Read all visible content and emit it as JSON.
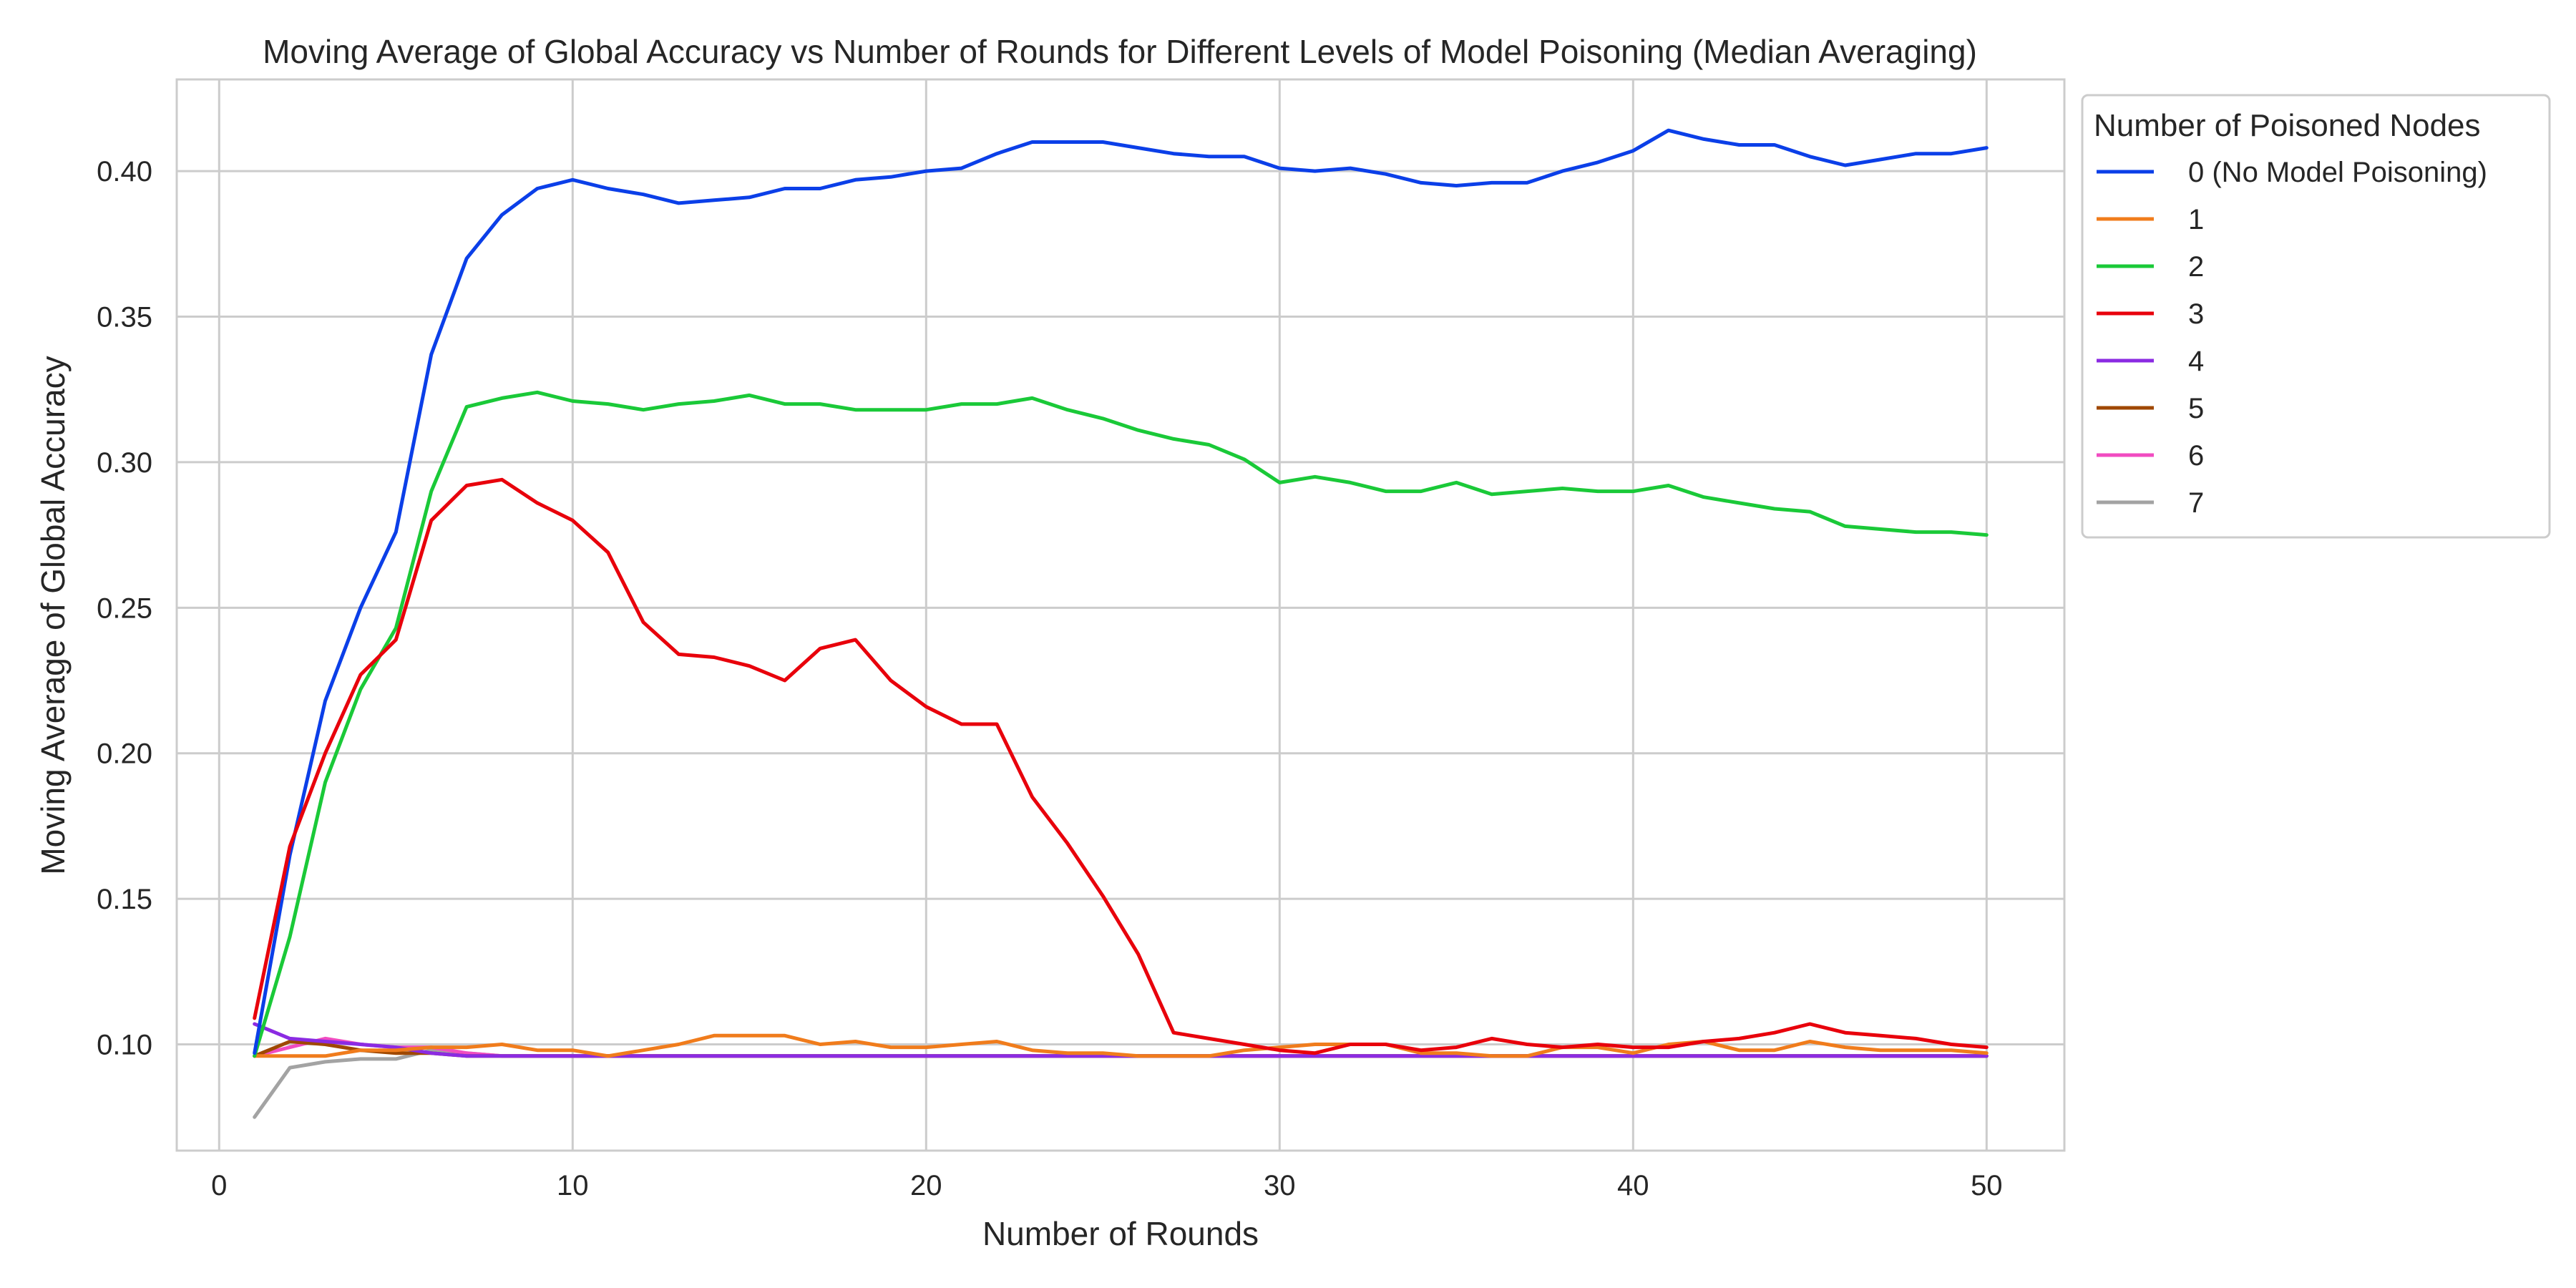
{
  "chart_data": {
    "type": "line",
    "title": "Moving Average of Global Accuracy vs Number of Rounds for Different Levels of Model Poisoning (Median Averaging)",
    "xlabel": "Number of Rounds",
    "ylabel": "Moving Average of Global Accuracy",
    "xlim": [
      -1.2,
      52.2
    ],
    "ylim": [
      0.0635,
      0.4315
    ],
    "xticks": [
      0,
      10,
      20,
      30,
      40,
      50
    ],
    "yticks": [
      0.1,
      0.15,
      0.2,
      0.25,
      0.3,
      0.35,
      0.4
    ],
    "xtick_labels": [
      "0",
      "10",
      "20",
      "30",
      "40",
      "50"
    ],
    "ytick_labels": [
      "0.10",
      "0.15",
      "0.20",
      "0.25",
      "0.30",
      "0.35",
      "0.40"
    ],
    "grid": true,
    "legend": {
      "title": "Number of Poisoned Nodes",
      "placement": "outside-upper-right"
    },
    "x": [
      1,
      2,
      3,
      4,
      5,
      6,
      7,
      8,
      9,
      10,
      11,
      12,
      13,
      14,
      15,
      16,
      17,
      18,
      19,
      20,
      21,
      22,
      23,
      24,
      25,
      26,
      27,
      28,
      29,
      30,
      31,
      32,
      33,
      34,
      35,
      36,
      37,
      38,
      39,
      40,
      41,
      42,
      43,
      44,
      45,
      46,
      47,
      48,
      49,
      50
    ],
    "series": [
      {
        "name": "0 (No Model Poisoning)",
        "color": "#0b3fe8",
        "values": [
          0.097,
          0.165,
          0.218,
          0.25,
          0.276,
          0.337,
          0.37,
          0.385,
          0.394,
          0.397,
          0.394,
          0.392,
          0.389,
          0.39,
          0.391,
          0.394,
          0.394,
          0.397,
          0.398,
          0.4,
          0.401,
          0.406,
          0.41,
          0.41,
          0.41,
          0.408,
          0.406,
          0.405,
          0.405,
          0.401,
          0.4,
          0.401,
          0.399,
          0.396,
          0.395,
          0.396,
          0.396,
          0.4,
          0.403,
          0.407,
          0.414,
          0.411,
          0.409,
          0.409,
          0.405,
          0.402,
          0.404,
          0.406,
          0.406,
          0.408
        ]
      },
      {
        "name": "1",
        "color": "#f07c1c",
        "values": [
          0.096,
          0.096,
          0.096,
          0.098,
          0.098,
          0.099,
          0.099,
          0.1,
          0.098,
          0.098,
          0.096,
          0.098,
          0.1,
          0.103,
          0.103,
          0.103,
          0.1,
          0.101,
          0.099,
          0.099,
          0.1,
          0.101,
          0.098,
          0.097,
          0.097,
          0.096,
          0.096,
          0.096,
          0.098,
          0.099,
          0.1,
          0.1,
          0.1,
          0.097,
          0.097,
          0.096,
          0.096,
          0.099,
          0.099,
          0.097,
          0.1,
          0.101,
          0.098,
          0.098,
          0.101,
          0.099,
          0.098,
          0.098,
          0.098,
          0.097
        ]
      },
      {
        "name": "2",
        "color": "#1ac938",
        "values": [
          0.096,
          0.137,
          0.19,
          0.222,
          0.243,
          0.29,
          0.319,
          0.322,
          0.324,
          0.321,
          0.32,
          0.318,
          0.32,
          0.321,
          0.323,
          0.32,
          0.32,
          0.318,
          0.318,
          0.318,
          0.32,
          0.32,
          0.322,
          0.318,
          0.315,
          0.311,
          0.308,
          0.306,
          0.301,
          0.293,
          0.295,
          0.293,
          0.29,
          0.29,
          0.293,
          0.289,
          0.29,
          0.291,
          0.29,
          0.29,
          0.292,
          0.288,
          0.286,
          0.284,
          0.283,
          0.278,
          0.277,
          0.276,
          0.276,
          0.275
        ]
      },
      {
        "name": "3",
        "color": "#e8000b",
        "values": [
          0.109,
          0.168,
          0.2,
          0.227,
          0.239,
          0.28,
          0.292,
          0.294,
          0.286,
          0.28,
          0.269,
          0.245,
          0.234,
          0.233,
          0.23,
          0.225,
          0.236,
          0.239,
          0.225,
          0.216,
          0.21,
          0.21,
          0.185,
          0.169,
          0.151,
          0.131,
          0.104,
          0.102,
          0.1,
          0.098,
          0.097,
          0.1,
          0.1,
          0.098,
          0.099,
          0.102,
          0.1,
          0.099,
          0.1,
          0.099,
          0.099,
          0.101,
          0.102,
          0.104,
          0.107,
          0.104,
          0.103,
          0.102,
          0.1,
          0.099
        ]
      },
      {
        "name": "4",
        "color": "#8b2be2",
        "values": [
          0.107,
          0.102,
          0.101,
          0.1,
          0.099,
          0.097,
          0.096,
          0.096,
          0.096,
          0.096,
          0.096,
          0.096,
          0.096,
          0.096,
          0.096,
          0.096,
          0.096,
          0.096,
          0.096,
          0.096,
          0.096,
          0.096,
          0.096,
          0.096,
          0.096,
          0.096,
          0.096,
          0.096,
          0.096,
          0.096,
          0.096,
          0.096,
          0.096,
          0.096,
          0.096,
          0.096,
          0.096,
          0.096,
          0.096,
          0.096,
          0.096,
          0.096,
          0.096,
          0.096,
          0.096,
          0.096,
          0.096,
          0.096,
          0.096,
          0.096
        ]
      },
      {
        "name": "5",
        "color": "#9f4800",
        "values": [
          0.096,
          0.101,
          0.1,
          0.098,
          0.097,
          0.097,
          0.096,
          0.096,
          0.096,
          0.096,
          0.096,
          0.096,
          0.096,
          0.096,
          0.096,
          0.096,
          0.096,
          0.096,
          0.096,
          0.096,
          0.096,
          0.096,
          0.096,
          0.096,
          0.096,
          0.096,
          0.096,
          0.096,
          0.096,
          0.096,
          0.096,
          0.096,
          0.096,
          0.096,
          0.096,
          0.096,
          0.096,
          0.096,
          0.096,
          0.096,
          0.096,
          0.096,
          0.096,
          0.096,
          0.096,
          0.096,
          0.096,
          0.096,
          0.096,
          0.096
        ]
      },
      {
        "name": "6",
        "color": "#f14cc1",
        "values": [
          0.096,
          0.099,
          0.102,
          0.1,
          0.099,
          0.099,
          0.097,
          0.096,
          0.096,
          0.096,
          0.096,
          0.096,
          0.096,
          0.096,
          0.096,
          0.096,
          0.096,
          0.096,
          0.096,
          0.096,
          0.096,
          0.096,
          0.096,
          0.096,
          0.096,
          0.096,
          0.096,
          0.096,
          0.096,
          0.096,
          0.096,
          0.096,
          0.096,
          0.096,
          0.096,
          0.096,
          0.096,
          0.096,
          0.096,
          0.096,
          0.096,
          0.096,
          0.096,
          0.096,
          0.096,
          0.096,
          0.096,
          0.096,
          0.096,
          0.096
        ]
      },
      {
        "name": "7",
        "color": "#a3a3a3",
        "values": [
          0.075,
          0.092,
          0.094,
          0.095,
          0.095,
          0.098,
          0.097,
          0.096,
          0.096,
          0.096,
          0.096,
          0.096,
          0.096,
          0.096,
          0.096,
          0.096,
          0.096,
          0.096,
          0.096,
          0.096,
          0.096,
          0.096,
          0.096,
          0.096,
          0.096,
          0.096,
          0.096,
          0.096,
          0.096,
          0.096,
          0.096,
          0.096,
          0.096,
          0.096,
          0.096,
          0.096,
          0.096,
          0.096,
          0.096,
          0.096,
          0.096,
          0.096,
          0.096,
          0.096,
          0.096,
          0.096,
          0.096,
          0.096,
          0.096,
          0.096
        ]
      }
    ]
  }
}
